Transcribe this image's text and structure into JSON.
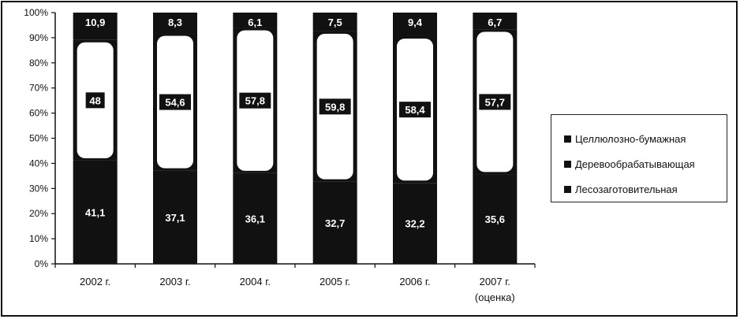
{
  "chart_data": {
    "type": "bar",
    "stacked": "percent",
    "categories": [
      "2002 г.",
      "2003 г.",
      "2004 г.",
      "2005 г.",
      "2006 г.",
      "2007 г.\n(оценка)"
    ],
    "series": [
      {
        "name": "Лесозаготовительная",
        "values": [
          41.1,
          37.1,
          36.1,
          32.7,
          32.2,
          35.6
        ],
        "labels": [
          "41,1",
          "37,1",
          "36,1",
          "32,7",
          "32,2",
          "35,6"
        ],
        "color": "#111111"
      },
      {
        "name": "Деревообрабатывающая",
        "values": [
          48,
          54.6,
          57.8,
          59.8,
          58.4,
          57.7
        ],
        "labels": [
          "48",
          "54,6",
          "57,8",
          "59,8",
          "58,4",
          "57,7"
        ],
        "color": "#ffffff"
      },
      {
        "name": "Целлюлозно-бумажная",
        "values": [
          10.9,
          8.3,
          6.1,
          7.5,
          9.4,
          6.7
        ],
        "labels": [
          "10,9",
          "8,3",
          "6,1",
          "7,5",
          "9,4",
          "6,7"
        ],
        "color": "#111111"
      }
    ],
    "y_ticks": [
      "0%",
      "10%",
      "20%",
      "30%",
      "40%",
      "50%",
      "60%",
      "70%",
      "80%",
      "90%",
      "100%"
    ],
    "ylim": [
      0,
      100
    ],
    "grid": false,
    "legend_position": "right",
    "legend": [
      "Целлюлозно-бумажная",
      "Деревообрабатывающая",
      "Лесозаготовительная"
    ]
  }
}
